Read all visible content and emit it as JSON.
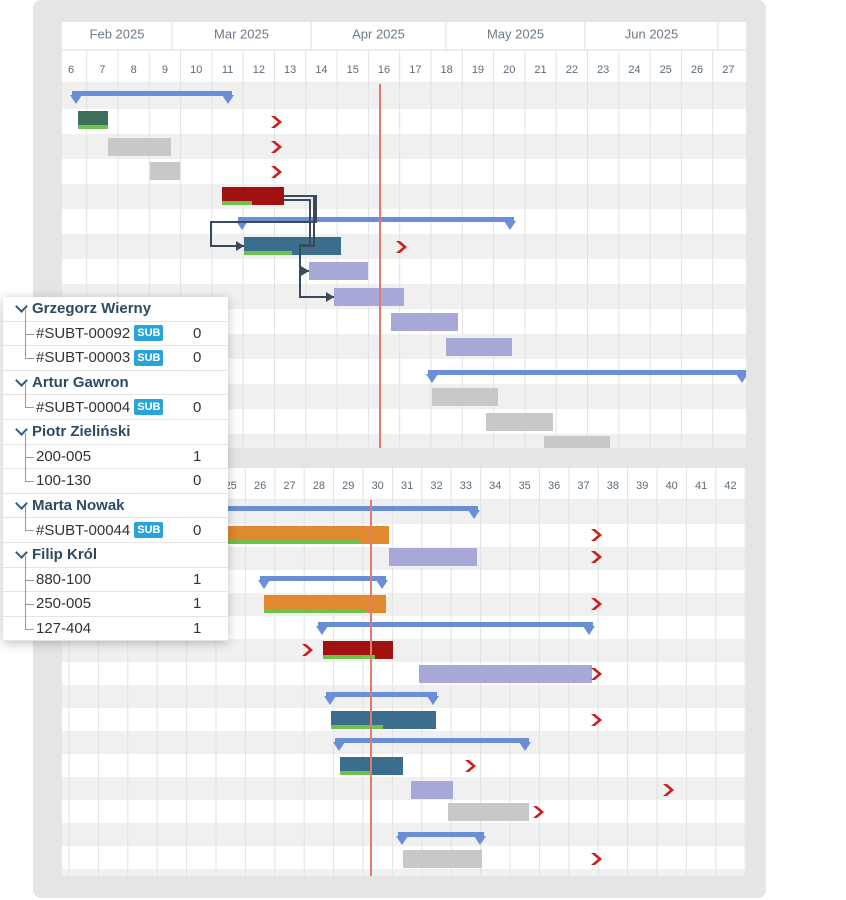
{
  "timeline_top": {
    "months": [
      "Feb 2025",
      "Mar 2025",
      "Apr 2025",
      "May 2025",
      "Jun 2025"
    ],
    "weeks": [
      6,
      7,
      8,
      9,
      10,
      11,
      12,
      13,
      14,
      15,
      16,
      17,
      18,
      19,
      20,
      21,
      22,
      23,
      24,
      25,
      26,
      27
    ]
  },
  "timeline_bottom": {
    "weeks": [
      25,
      26,
      27,
      28,
      29,
      30,
      31,
      32,
      33,
      34,
      35,
      36,
      37,
      38,
      39,
      40,
      41,
      42
    ]
  },
  "resource_panel": {
    "groups": [
      {
        "name": "Grzegorz Wierny",
        "items": [
          {
            "label": "#SUBT-00092",
            "badge": "SUB",
            "count": 0
          },
          {
            "label": "#SUBT-00003",
            "badge": "SUB",
            "count": 0
          }
        ]
      },
      {
        "name": "Artur Gawron",
        "items": [
          {
            "label": "#SUBT-00004",
            "badge": "SUB",
            "count": 0
          }
        ]
      },
      {
        "name": "Piotr Zieliński",
        "items": [
          {
            "label": "200-005",
            "count": 1
          },
          {
            "label": "100-130",
            "count": 0
          }
        ]
      },
      {
        "name": "Marta Nowak",
        "items": [
          {
            "label": "#SUBT-00044",
            "badge": "SUB",
            "count": 0
          }
        ]
      },
      {
        "name": "Filip Król",
        "items": [
          {
            "label": "880-100",
            "count": 1
          },
          {
            "label": "250-005",
            "count": 1
          },
          {
            "label": "127-404",
            "count": 1
          }
        ]
      }
    ]
  }
}
